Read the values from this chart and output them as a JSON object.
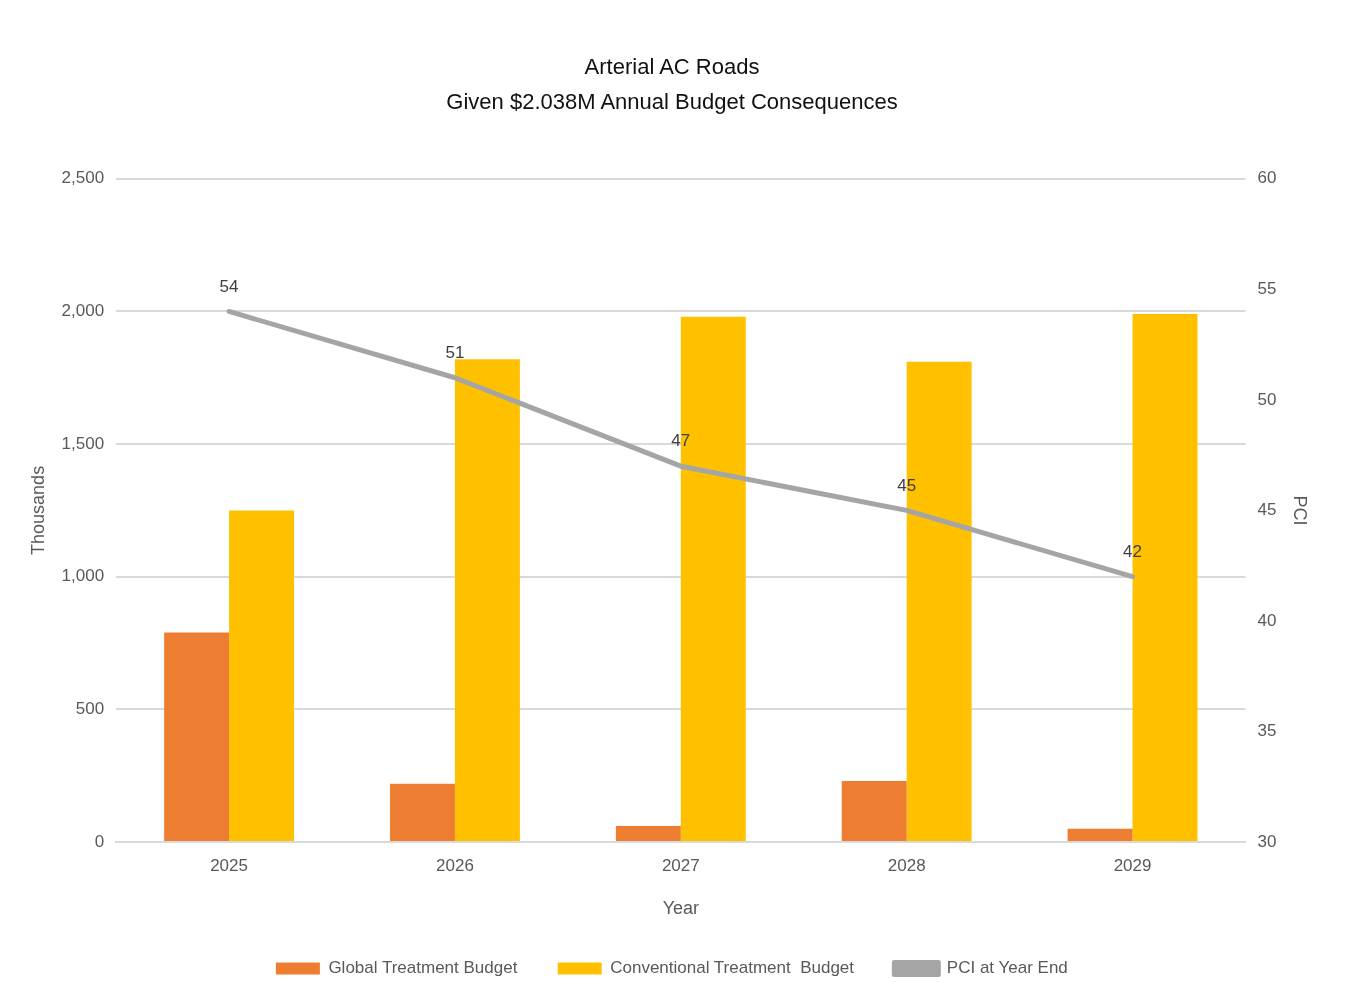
{
  "chart_data": {
    "type": "bar",
    "title": "Arterial AC Roads",
    "subtitle": "Given $2.038M Annual Budget Consequences",
    "xlabel": "Year",
    "ylabel": "Thousands",
    "y2label": "PCI",
    "categories": [
      "2025",
      "2026",
      "2027",
      "2028",
      "2029"
    ],
    "series": [
      {
        "name": "Global Treatment Budget",
        "color": "#ed7d31",
        "values": [
          790,
          220,
          60,
          230,
          50
        ]
      },
      {
        "name": "Conventional Treatment  Budget",
        "color": "#ffc000",
        "values": [
          1250,
          1820,
          1980,
          1810,
          1990
        ]
      },
      {
        "name": "PCI at Year End",
        "type": "line",
        "axis": "y2",
        "color": "#a5a5a5",
        "line_style": "solid",
        "values": [
          54,
          51,
          47,
          45,
          42
        ],
        "value_labels": [
          "54",
          "51",
          "47",
          "45",
          "42"
        ]
      }
    ],
    "ylim": [
      0,
      2500
    ],
    "yticks": [
      0,
      500,
      {
        "value": 1000,
        "label": "1,000"
      },
      {
        "value": 1500,
        "label": "1,500"
      },
      {
        "value": 2000,
        "label": "2,000"
      },
      {
        "value": 2500,
        "label": "2,500"
      }
    ],
    "y2lim": [
      30,
      60
    ],
    "y2ticks": [
      30,
      35,
      40,
      45,
      50,
      55,
      60
    ],
    "grid": "y",
    "legend": "bottom"
  }
}
